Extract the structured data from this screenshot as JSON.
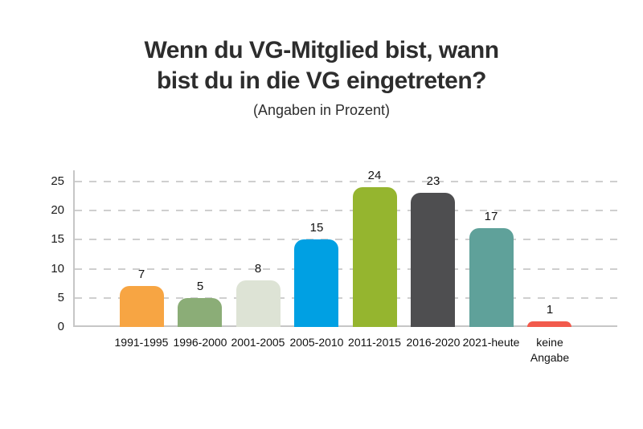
{
  "title": {
    "line1": "Wenn du VG-Mitglied bist, wann",
    "line2": "bist du in die VG eingetreten?",
    "subtitle": "(Angaben in Prozent)"
  },
  "chart_data": {
    "type": "bar",
    "title": "Wenn du VG-Mitglied bist, wann bist du in die VG eingetreten?",
    "subtitle": "(Angaben in Prozent)",
    "categories": [
      "1991-1995",
      "1996-2000",
      "2001-2005",
      "2005-2010",
      "2011-2015",
      "2016-2020",
      "2021-heute",
      "keine Angabe"
    ],
    "values": [
      7,
      5,
      8,
      15,
      24,
      23,
      17,
      1
    ],
    "bar_colors": [
      "#F7A543",
      "#8BAD77",
      "#DDE3D5",
      "#00A0E3",
      "#95B52F",
      "#4E4E50",
      "#5FA19A",
      "#F25A4C"
    ],
    "xlabel": "",
    "ylabel": "",
    "ylim": [
      0,
      25
    ],
    "yticks": [
      0,
      5,
      10,
      15,
      20,
      25
    ],
    "grid": "horizontal dashed",
    "legend": "none",
    "colors": {
      "text": "#2d2d2d",
      "axis": "#c6c6c6",
      "gridline": "#cfcfcf",
      "value_labels": "#111111"
    }
  }
}
